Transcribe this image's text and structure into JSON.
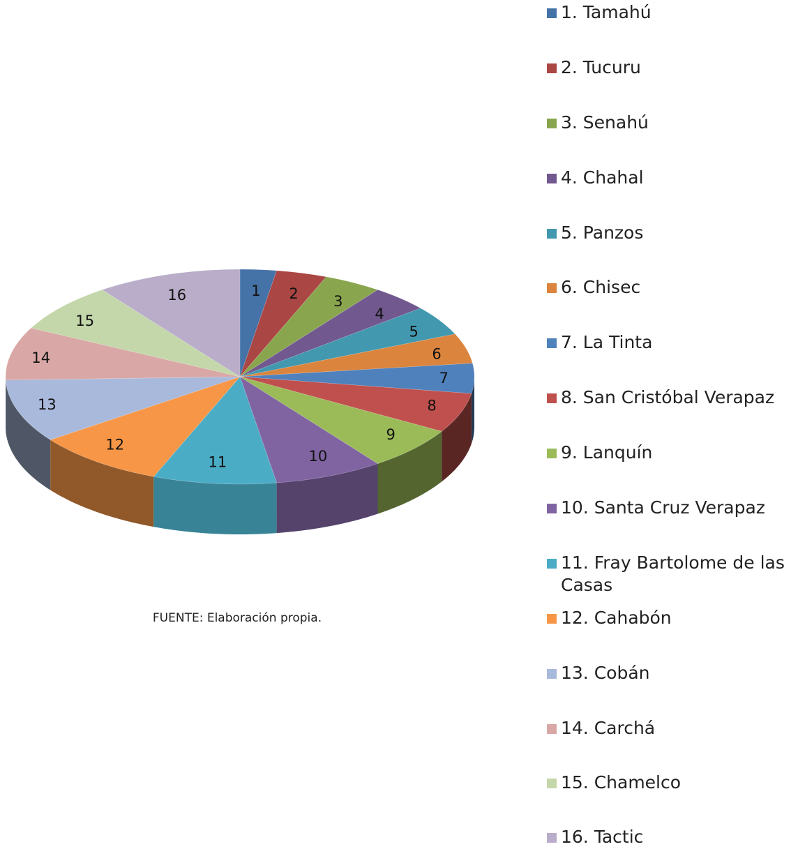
{
  "source_note": "FUENTE: Elaboración propia.",
  "chart_data": {
    "type": "pie",
    "style": "3d-exploded-none",
    "start_angle_deg": 90,
    "legend_position": "right",
    "categories": [
      "1. Tamahú",
      "2. Tucuru",
      "3. Senahú",
      "4. Chahal",
      "5. Panzos",
      "6. Chisec",
      "7. La Tinta",
      "8. San Cristóbal Verapaz",
      "9. Lanquín",
      "10. Santa Cruz Verapaz",
      "11. Fray Bartolome de las Casas",
      "12. Cahabón",
      "13. Cobán",
      "14. Carchá",
      "15. Chamelco",
      "16. Tactic"
    ],
    "slice_labels": [
      "1",
      "2",
      "3",
      "4",
      "5",
      "6",
      "7",
      "8",
      "9",
      "10",
      "11",
      "12",
      "13",
      "14",
      "15",
      "16"
    ],
    "values": [
      2.5,
      3.5,
      4.0,
      4.0,
      4.5,
      4.5,
      4.5,
      6.0,
      6.5,
      7.5,
      8.5,
      9.0,
      9.5,
      8.0,
      7.5,
      10.0
    ],
    "colors": [
      "#4572A7",
      "#AA4643",
      "#89A54E",
      "#71588F",
      "#4198AF",
      "#DB843D",
      "#4F81BD",
      "#C0504D",
      "#9BBB59",
      "#8064A2",
      "#4BACC6",
      "#F79646",
      "#A9B9DB",
      "#D9A8A6",
      "#C4D7AA",
      "#B9ADC9"
    ]
  }
}
